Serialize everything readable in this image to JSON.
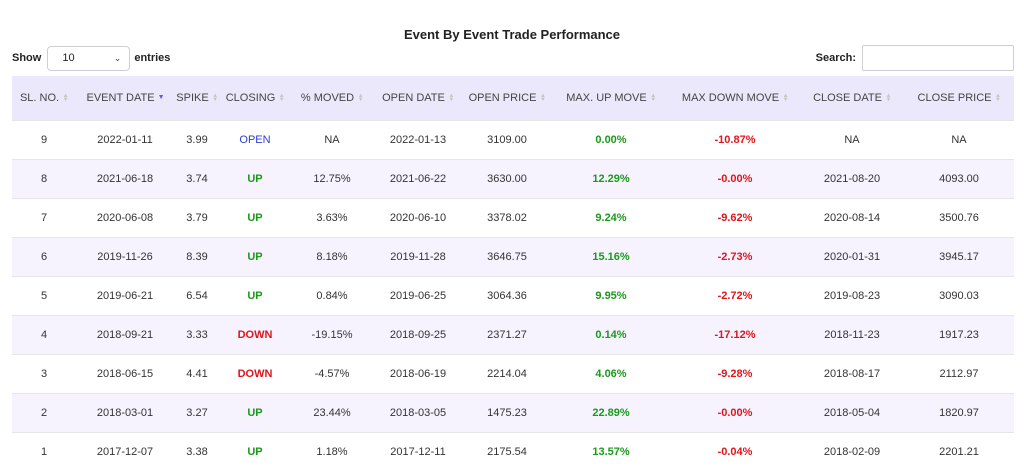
{
  "title": "Event By Event Trade Performance",
  "length_control": {
    "show_label": "Show",
    "selected": "10",
    "entries_label": "entries"
  },
  "search": {
    "label": "Search:",
    "value": ""
  },
  "columns": [
    "SL. NO.",
    "EVENT DATE",
    "SPIKE",
    "CLOSING",
    "% MOVED",
    "OPEN DATE",
    "OPEN PRICE",
    "MAX. UP MOVE",
    "MAX DOWN MOVE",
    "CLOSE DATE",
    "CLOSE PRICE"
  ],
  "sorted_column": "EVENT DATE",
  "colors": {
    "up": "#1a9a1a",
    "down": "#e0151b",
    "open": "#2b3ccf",
    "header_bg": "#ece8fb",
    "stripe_bg": "#f6f3ff"
  },
  "rows": [
    [
      "9",
      "2022-01-11",
      "3.99",
      "OPEN",
      "NA",
      "2022-01-13",
      "3109.00",
      "0.00%",
      "-10.87%",
      "NA",
      "NA"
    ],
    [
      "8",
      "2021-06-18",
      "3.74",
      "UP",
      "12.75%",
      "2021-06-22",
      "3630.00",
      "12.29%",
      "-0.00%",
      "2021-08-20",
      "4093.00"
    ],
    [
      "7",
      "2020-06-08",
      "3.79",
      "UP",
      "3.63%",
      "2020-06-10",
      "3378.02",
      "9.24%",
      "-9.62%",
      "2020-08-14",
      "3500.76"
    ],
    [
      "6",
      "2019-11-26",
      "8.39",
      "UP",
      "8.18%",
      "2019-11-28",
      "3646.75",
      "15.16%",
      "-2.73%",
      "2020-01-31",
      "3945.17"
    ],
    [
      "5",
      "2019-06-21",
      "6.54",
      "UP",
      "0.84%",
      "2019-06-25",
      "3064.36",
      "9.95%",
      "-2.72%",
      "2019-08-23",
      "3090.03"
    ],
    [
      "4",
      "2018-09-21",
      "3.33",
      "DOWN",
      "-19.15%",
      "2018-09-25",
      "2371.27",
      "0.14%",
      "-17.12%",
      "2018-11-23",
      "1917.23"
    ],
    [
      "3",
      "2018-06-15",
      "4.41",
      "DOWN",
      "-4.57%",
      "2018-06-19",
      "2214.04",
      "4.06%",
      "-9.28%",
      "2018-08-17",
      "2112.97"
    ],
    [
      "2",
      "2018-03-01",
      "3.27",
      "UP",
      "23.44%",
      "2018-03-05",
      "1475.23",
      "22.89%",
      "-0.00%",
      "2018-05-04",
      "1820.97"
    ],
    [
      "1",
      "2017-12-07",
      "3.38",
      "UP",
      "1.18%",
      "2017-12-11",
      "2175.54",
      "13.57%",
      "-0.04%",
      "2018-02-09",
      "2201.21"
    ]
  ]
}
